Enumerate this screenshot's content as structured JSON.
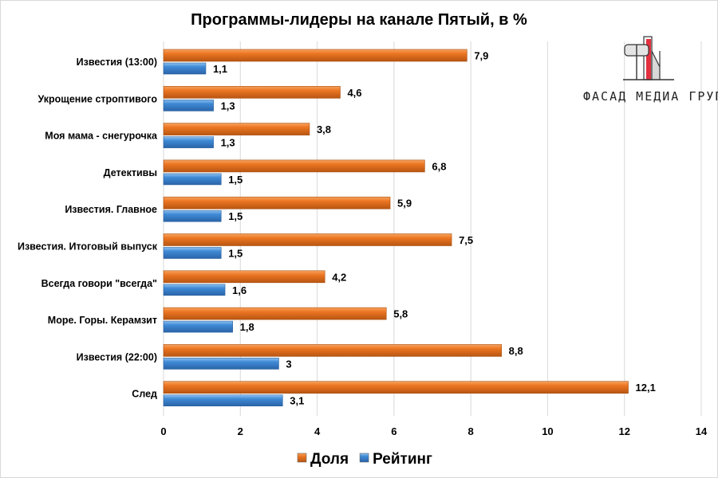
{
  "chart_data": {
    "type": "bar",
    "orientation": "horizontal",
    "title": "Программы-лидеры на канале Пятый, в %",
    "categories": [
      "Известия (13:00)",
      "Укрощение строптивого",
      "Моя мама - снегурочка",
      "Детективы",
      "Известия. Главное",
      "Известия. Итоговый выпуск",
      "Всегда говори \"всегда\"",
      "Море. Горы. Керамзит",
      "Известия (22:00)",
      "След"
    ],
    "series": [
      {
        "name": "Доля",
        "color": "#ec7622",
        "values": [
          7.9,
          4.6,
          3.8,
          6.8,
          5.9,
          7.5,
          4.2,
          5.8,
          8.8,
          12.1
        ],
        "labels": [
          "7,9",
          "4,6",
          "3,8",
          "6,8",
          "5,9",
          "7,5",
          "4,2",
          "5,8",
          "8,8",
          "12,1"
        ]
      },
      {
        "name": "Рейтинг",
        "color": "#3f8ad6",
        "values": [
          1.1,
          1.3,
          1.3,
          1.5,
          1.5,
          1.5,
          1.6,
          1.8,
          3,
          3.1
        ],
        "labels": [
          "1,1",
          "1,3",
          "1,3",
          "1,5",
          "1,5",
          "1,5",
          "1,6",
          "1,8",
          "3",
          "3,1"
        ]
      }
    ],
    "xlim": [
      0,
      14
    ],
    "xticks": [
      "0",
      "2",
      "4",
      "6",
      "8",
      "10",
      "12",
      "14"
    ],
    "grid": true,
    "legend_position": "bottom"
  },
  "logo": {
    "text": "ФАСАД МЕДИА ГРУПП"
  }
}
